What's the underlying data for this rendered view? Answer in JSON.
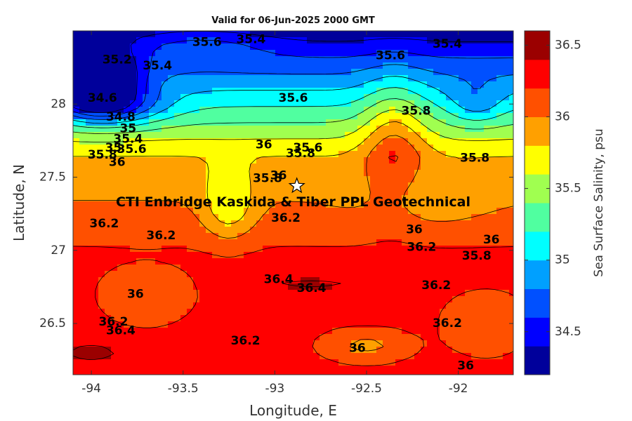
{
  "chart_data": {
    "type": "heatmap",
    "title": "Valid for 06-Jun-2025 2000 GMT",
    "xlabel": "Longitude, E",
    "ylabel": "Latitude, N",
    "colorbar_label": "Sea Surface Salinity, psu",
    "xlim": [
      -94.1,
      -91.7
    ],
    "ylim": [
      26.15,
      28.5
    ],
    "xticks": [
      -94,
      -93.5,
      -93,
      -92.5,
      -92
    ],
    "xtick_labels": [
      "-94",
      "-93.5",
      "-93",
      "-92.5",
      "-92"
    ],
    "yticks": [
      26.5,
      27,
      27.5,
      28
    ],
    "ytick_labels": [
      "26.5",
      "27",
      "27.5",
      "28"
    ],
    "clim": [
      34.2,
      36.6
    ],
    "colorbar_ticks": [
      34.5,
      35,
      35.5,
      36,
      36.5
    ],
    "colorbar_tick_labels": [
      "34.5",
      "35",
      "35.5",
      "36",
      "36.5"
    ],
    "levels": [
      34.2,
      34.4,
      34.6,
      34.8,
      35.0,
      35.2,
      35.4,
      35.6,
      35.8,
      36.0,
      36.2,
      36.4,
      36.6
    ],
    "colormap": [
      "#00009b",
      "#0000ff",
      "#0050ff",
      "#00a0ff",
      "#00ffff",
      "#50ffa0",
      "#a0ff50",
      "#ffff00",
      "#ffa000",
      "#ff5000",
      "#ff0000",
      "#9b0000"
    ],
    "contour_labels": [
      {
        "text": "35.6",
        "lon": -93.37,
        "lat": 28.42
      },
      {
        "text": "35.4",
        "lon": -93.13,
        "lat": 28.44
      },
      {
        "text": "35.4",
        "lon": -92.06,
        "lat": 28.41
      },
      {
        "text": "35.6",
        "lon": -92.37,
        "lat": 28.33
      },
      {
        "text": "35.2",
        "lon": -93.86,
        "lat": 28.3
      },
      {
        "text": "35.4",
        "lon": -93.64,
        "lat": 28.26
      },
      {
        "text": "35.6",
        "lon": -92.9,
        "lat": 28.04
      },
      {
        "text": "34.6",
        "lon": -93.94,
        "lat": 28.04
      },
      {
        "text": "35.8",
        "lon": -92.23,
        "lat": 27.95
      },
      {
        "text": "34.8",
        "lon": -93.84,
        "lat": 27.91
      },
      {
        "text": "35",
        "lon": -93.8,
        "lat": 27.83
      },
      {
        "text": "35.4",
        "lon": -93.8,
        "lat": 27.76
      },
      {
        "text": "35",
        "lon": -93.88,
        "lat": 27.7
      },
      {
        "text": "35.6",
        "lon": -93.78,
        "lat": 27.69
      },
      {
        "text": "35.8",
        "lon": -93.94,
        "lat": 27.65
      },
      {
        "text": "36",
        "lon": -93.86,
        "lat": 27.6
      },
      {
        "text": "36",
        "lon": -93.06,
        "lat": 27.72
      },
      {
        "text": "35.6",
        "lon": -92.82,
        "lat": 27.7
      },
      {
        "text": "35.8",
        "lon": -92.86,
        "lat": 27.66
      },
      {
        "text": "35.8",
        "lon": -91.91,
        "lat": 27.63
      },
      {
        "text": "35.8",
        "lon": -93.04,
        "lat": 27.49
      },
      {
        "text": "36",
        "lon": -92.98,
        "lat": 27.51
      },
      {
        "text": "36.2",
        "lon": -93.93,
        "lat": 27.18
      },
      {
        "text": "36.2",
        "lon": -93.62,
        "lat": 27.1
      },
      {
        "text": "36.2",
        "lon": -92.94,
        "lat": 27.22
      },
      {
        "text": "36",
        "lon": -92.24,
        "lat": 27.14
      },
      {
        "text": "36.2",
        "lon": -92.2,
        "lat": 27.02
      },
      {
        "text": "36",
        "lon": -91.82,
        "lat": 27.07
      },
      {
        "text": "35.8",
        "lon": -91.9,
        "lat": 26.96
      },
      {
        "text": "36.4",
        "lon": -92.98,
        "lat": 26.8
      },
      {
        "text": "36.4",
        "lon": -92.8,
        "lat": 26.74
      },
      {
        "text": "36.2",
        "lon": -92.12,
        "lat": 26.76
      },
      {
        "text": "36",
        "lon": -93.76,
        "lat": 26.7
      },
      {
        "text": "36.2",
        "lon": -93.88,
        "lat": 26.51
      },
      {
        "text": "36.4",
        "lon": -93.84,
        "lat": 26.45
      },
      {
        "text": "36.2",
        "lon": -92.06,
        "lat": 26.5
      },
      {
        "text": "36.2",
        "lon": -93.16,
        "lat": 26.38
      },
      {
        "text": "36",
        "lon": -92.55,
        "lat": 26.33
      },
      {
        "text": "36",
        "lon": -91.96,
        "lat": 26.21
      }
    ],
    "annotation": {
      "text": "CTI Enbridge  Kaskida & Tiber PPL Geotechnical",
      "lon": -92.9,
      "lat": 27.33
    },
    "marker": {
      "symbol": "star",
      "lon": -92.88,
      "lat": 27.44
    }
  }
}
